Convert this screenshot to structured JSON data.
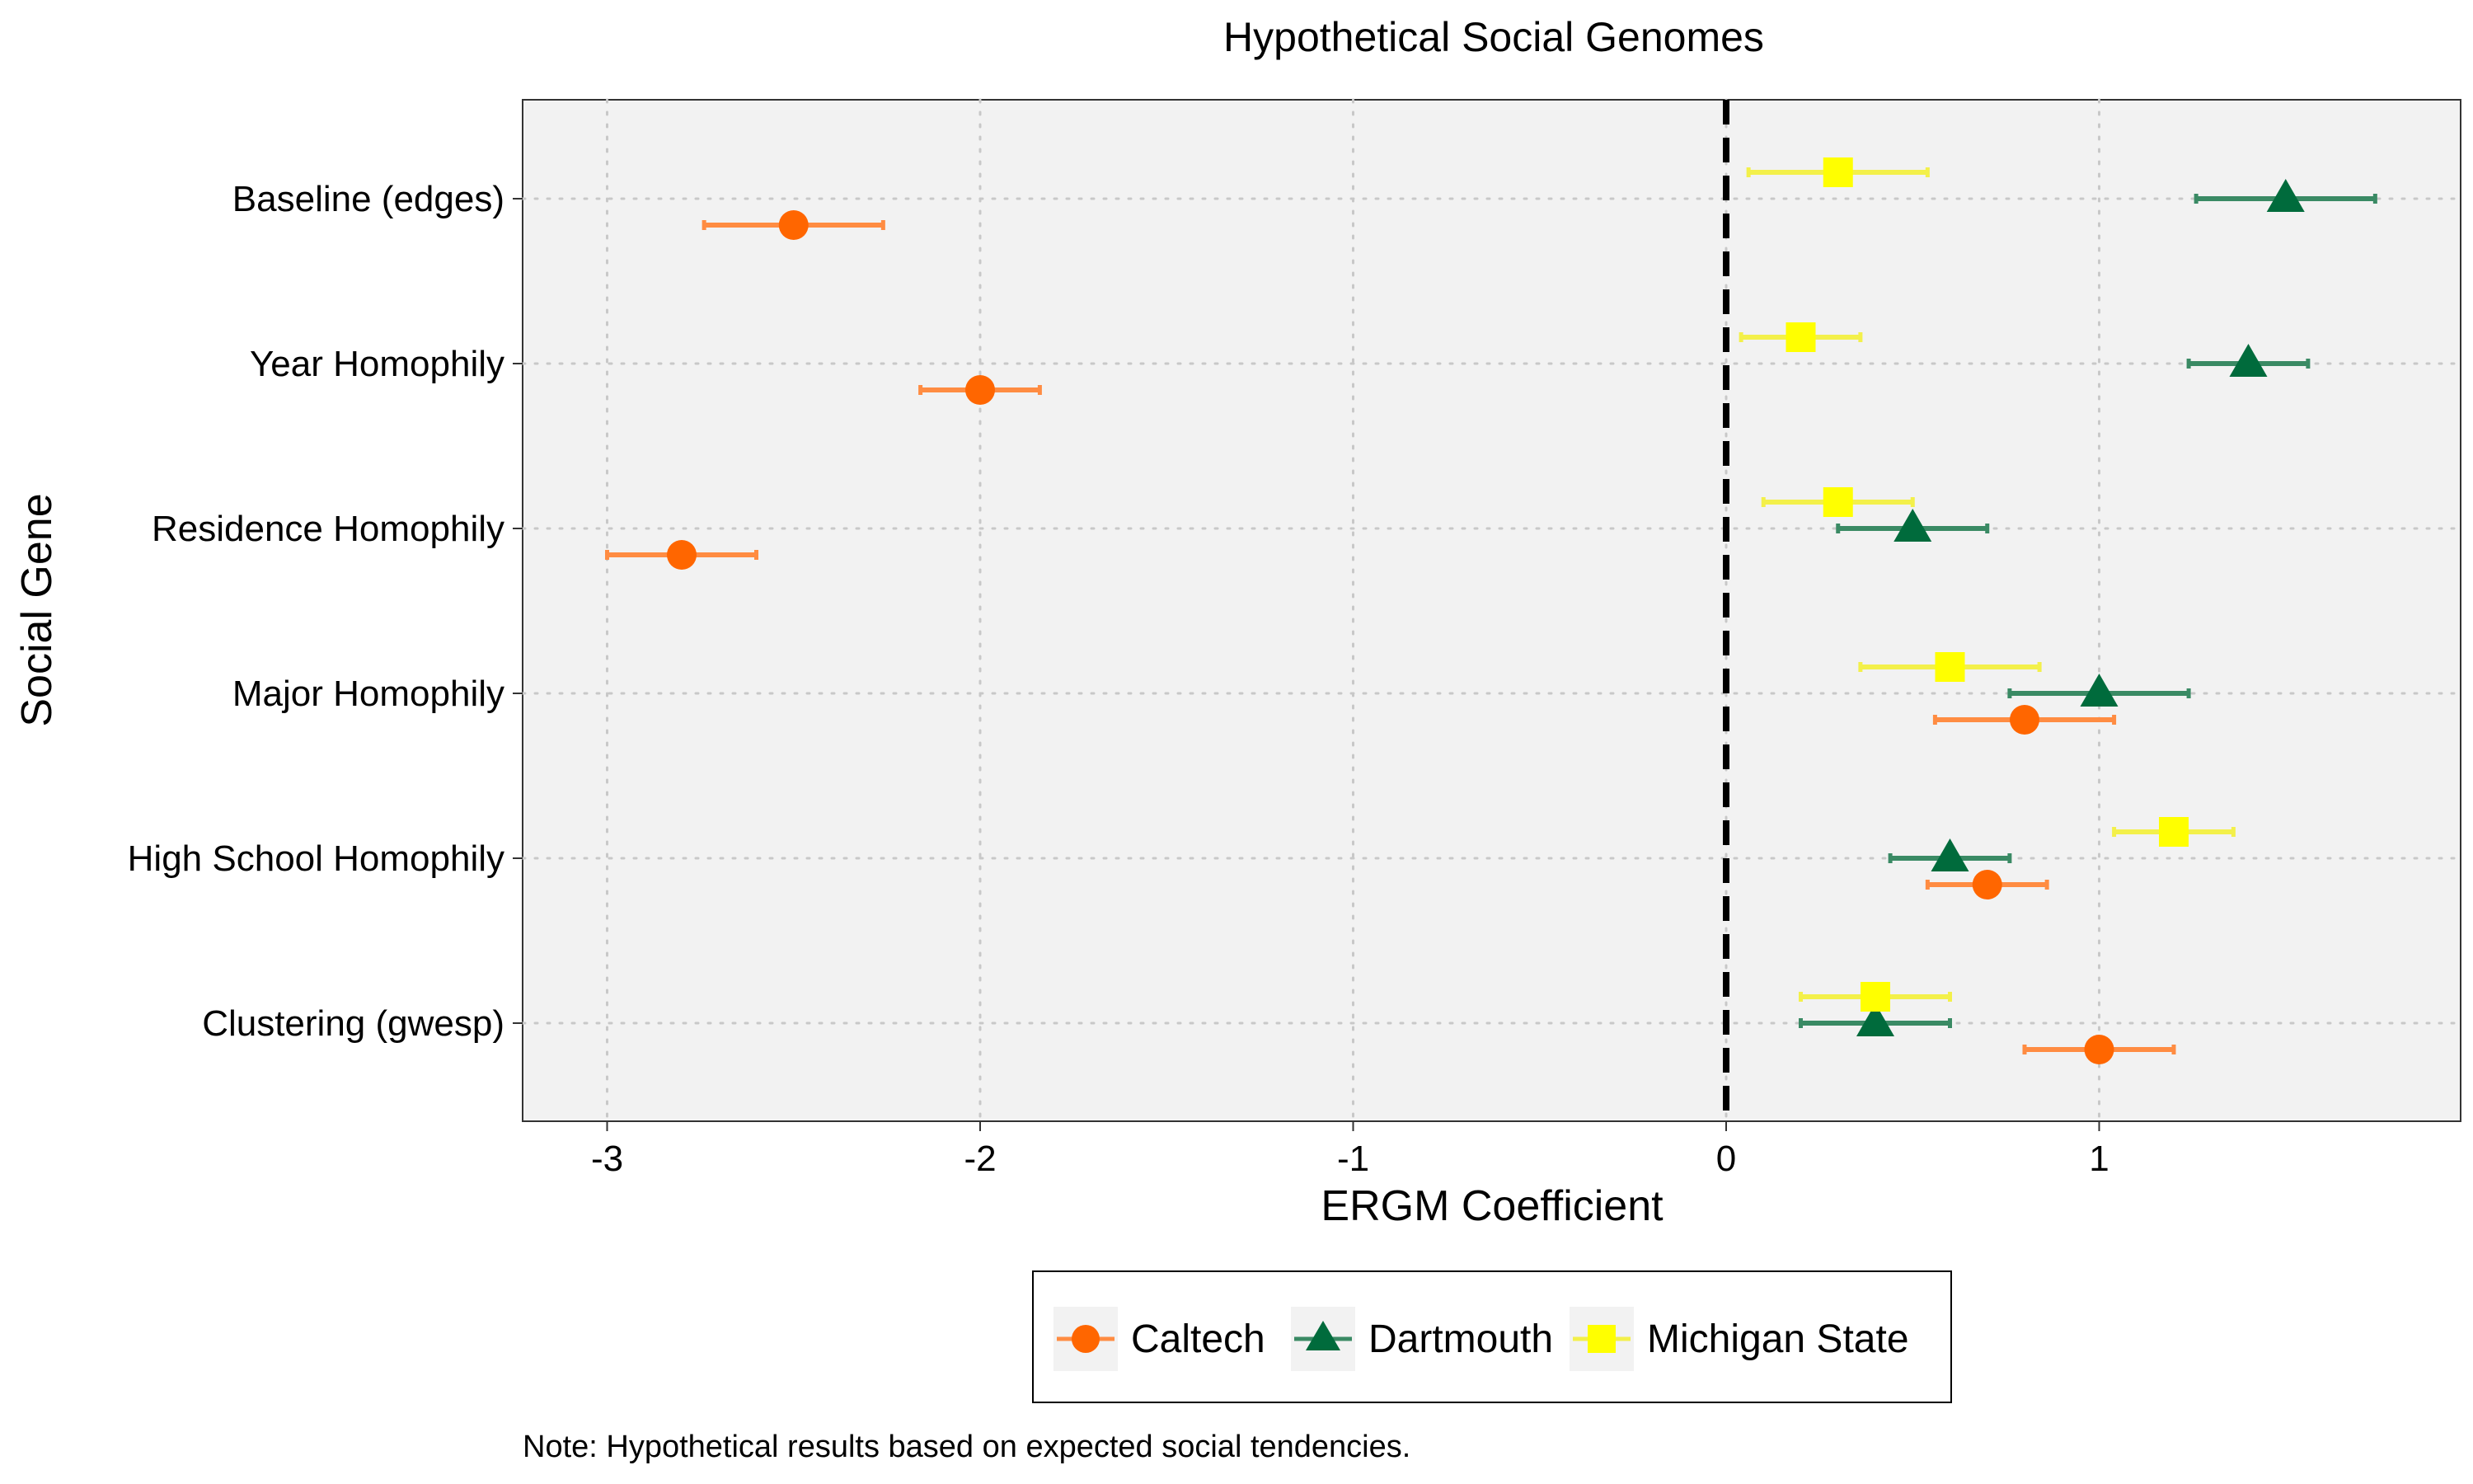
{
  "chart_data": {
    "type": "scatter",
    "title": "Hypothetical Social Genomes",
    "xlabel": "ERGM Coefficient",
    "ylabel": "Social Gene",
    "xlim": [
      -3.22,
      1.97
    ],
    "x_ticks": [
      -3,
      -2,
      -1,
      0,
      1
    ],
    "x_tick_labels": [
      "-3",
      "-2",
      "-1",
      "0",
      "1"
    ],
    "categories": [
      "Baseline (edges)",
      "Year Homophily",
      "Residence Homophily",
      "Major Homophily",
      "High School Homophily",
      "Clustering (gwesp)"
    ],
    "reference_line": {
      "x": 0,
      "style": "dashed"
    },
    "grid": true,
    "legend_position": "bottom",
    "series": [
      {
        "name": "Caltech",
        "color": "#ff6600",
        "errorbar_color": "#ff8c42",
        "marker": "circle",
        "values": [
          -2.5,
          -2.0,
          -2.8,
          0.8,
          0.7,
          1.0
        ],
        "lower": [
          -2.74,
          -2.16,
          -3.0,
          0.56,
          0.54,
          0.8
        ],
        "upper": [
          -2.26,
          -1.84,
          -2.6,
          1.04,
          0.86,
          1.2
        ]
      },
      {
        "name": "Dartmouth",
        "color": "#006b3c",
        "errorbar_color": "#3a8a64",
        "marker": "triangle",
        "values": [
          1.5,
          1.4,
          0.5,
          1.0,
          0.6,
          0.4
        ],
        "lower": [
          1.26,
          1.24,
          0.3,
          0.76,
          0.44,
          0.2
        ],
        "upper": [
          1.74,
          1.56,
          0.7,
          1.24,
          0.76,
          0.6
        ]
      },
      {
        "name": "Michigan State",
        "color": "#ffff00",
        "errorbar_color": "#f3f04a",
        "marker": "square",
        "values": [
          0.3,
          0.2,
          0.3,
          0.6,
          1.2,
          0.4
        ],
        "lower": [
          0.06,
          0.04,
          0.1,
          0.36,
          1.04,
          0.2
        ],
        "upper": [
          0.54,
          0.36,
          0.5,
          0.84,
          1.36,
          0.6
        ]
      }
    ],
    "note": "Note: Hypothetical results based on expected social tendencies."
  },
  "legend": {
    "items": [
      {
        "name": "Caltech"
      },
      {
        "name": "Dartmouth"
      },
      {
        "name": "Michigan State"
      }
    ]
  }
}
